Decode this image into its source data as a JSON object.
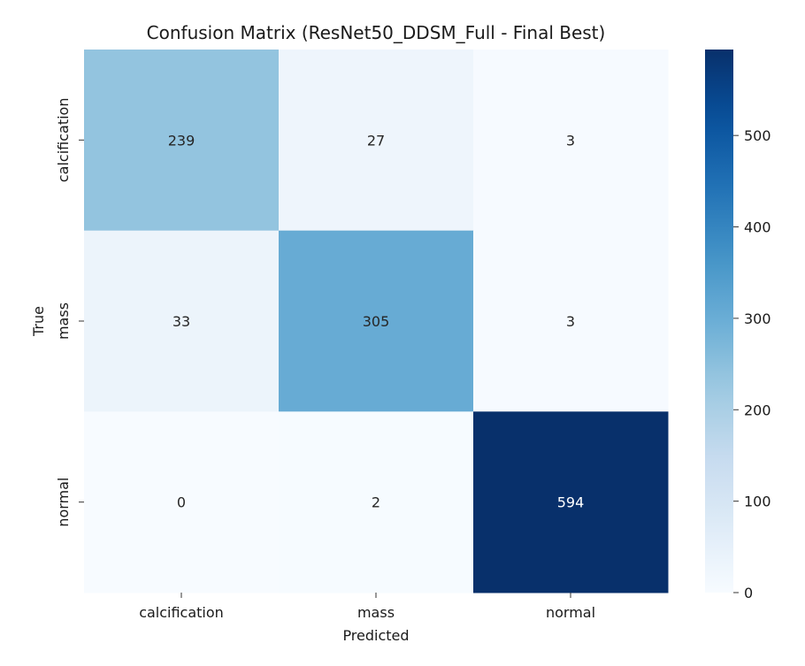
{
  "chart_data": {
    "type": "heatmap",
    "title": "Confusion Matrix (ResNet50_DDSM_Full - Final Best)",
    "xlabel": "Predicted",
    "ylabel": "True",
    "x_categories": [
      "calcification",
      "mass",
      "normal"
    ],
    "y_categories": [
      "calcification",
      "mass",
      "normal"
    ],
    "values": [
      [
        239,
        27,
        3
      ],
      [
        33,
        305,
        3
      ],
      [
        0,
        2,
        594
      ]
    ],
    "colormap": "Blues",
    "colorbar": {
      "range": [
        0,
        594
      ],
      "ticks": [
        0,
        100,
        200,
        300,
        400,
        500
      ]
    }
  }
}
